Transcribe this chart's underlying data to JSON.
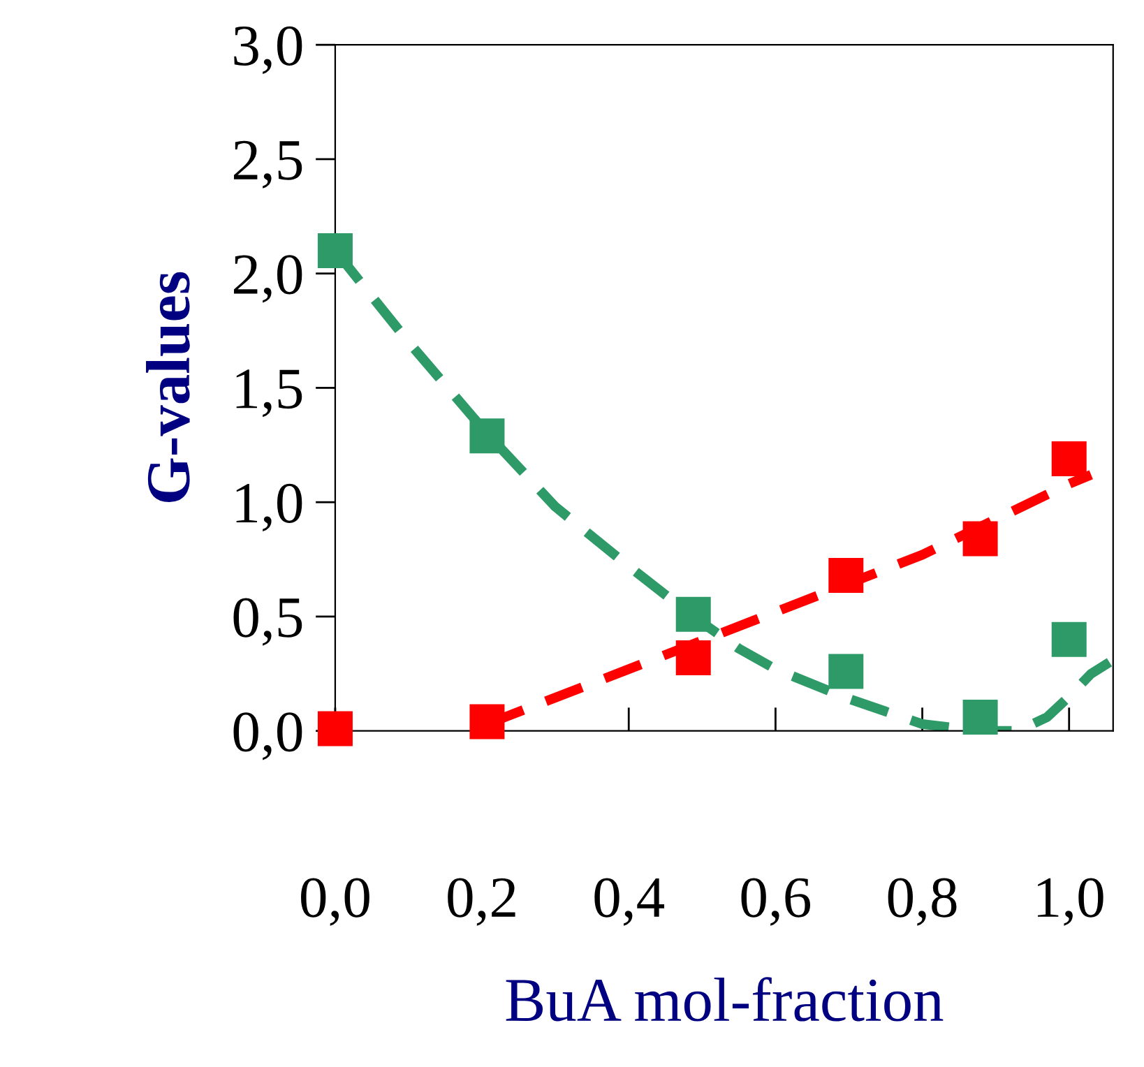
{
  "chart_data": {
    "type": "scatter",
    "xlabel": "BuA mol-fraction",
    "ylabel": "G-values",
    "xlim": [
      0,
      1.06
    ],
    "ylim": [
      0,
      3.0
    ],
    "xticks": [
      {
        "value": 0,
        "label": "0,0"
      },
      {
        "value": 0.2,
        "label": "0,2"
      },
      {
        "value": 0.4,
        "label": "0,4"
      },
      {
        "value": 0.6,
        "label": "0,6"
      },
      {
        "value": 0.8,
        "label": "0,8"
      },
      {
        "value": 1.0,
        "label": "1,0"
      }
    ],
    "yticks": [
      {
        "value": 0,
        "label": "0,0"
      },
      {
        "value": 0.5,
        "label": "0,5"
      },
      {
        "value": 1.0,
        "label": "1,0"
      },
      {
        "value": 1.5,
        "label": "1,5"
      },
      {
        "value": 2.0,
        "label": "2,0"
      },
      {
        "value": 2.5,
        "label": "2,5"
      },
      {
        "value": 3.0,
        "label": "3,0"
      }
    ],
    "grid": false,
    "legend": false,
    "series": [
      {
        "marker": "square",
        "color": "#ff0000",
        "x": [
          0,
          0.207,
          0.488,
          0.696,
          0.879,
          1.0
        ],
        "values": [
          0.01,
          0.04,
          0.32,
          0.68,
          0.84,
          1.19
        ]
      },
      {
        "marker": "square",
        "color": "#2e9a68",
        "x": [
          0,
          0.207,
          0.488,
          0.696,
          0.879,
          1.0
        ],
        "values": [
          2.1,
          1.29,
          0.51,
          0.26,
          0.06,
          0.4
        ]
      },
      {
        "type": "line",
        "line_style": "dashed",
        "color": "#ff0000",
        "x": [
          0.207,
          0.4,
          0.6,
          0.8,
          1.0,
          1.03
        ],
        "values": [
          0.03,
          0.27,
          0.52,
          0.77,
          1.08,
          1.12
        ]
      },
      {
        "type": "line",
        "line_style": "dashed",
        "color": "#2e9a68",
        "x": [
          0,
          0.1,
          0.207,
          0.3,
          0.4,
          0.488,
          0.55,
          0.6,
          0.7,
          0.8,
          0.88,
          0.93,
          0.97,
          1.0,
          1.03,
          1.055
        ],
        "values": [
          2.1,
          1.7,
          1.3,
          0.98,
          0.72,
          0.5,
          0.36,
          0.27,
          0.14,
          0.03,
          0.0,
          0.0,
          0.06,
          0.15,
          0.25,
          0.3
        ]
      }
    ]
  }
}
